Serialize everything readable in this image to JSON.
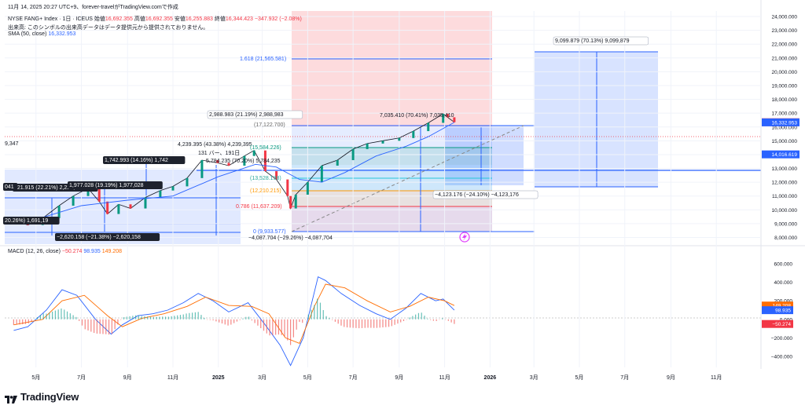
{
  "header": {
    "timestamp": "11月 14, 2025 20:27 UTC+9、forever-travelがTradingView.comで作成",
    "symbol": "NYSE FANG+ Index · 1日 · ICEUS",
    "open_label": "始値",
    "open": "16,692.355",
    "high_label": "高値",
    "high": "16,692.355",
    "low_label": "安値",
    "low": "16,255.883",
    "close_label": "終値",
    "close": "16,344.423",
    "change": "−347.932 (−2.08%)",
    "volume_note": "出来高: このシンボルの出来高データはデータ提供元から提供されておりません。",
    "sma_label": "SMA (50, close)",
    "sma_value": "16,332.953",
    "macd_label": "MACD (12, 26, close)",
    "macd_hist": "−50.274",
    "macd_line": "98.935",
    "macd_signal": "149.208"
  },
  "colors": {
    "price": "#131722",
    "up": "#089981",
    "down": "#f23645",
    "sma": "#2962ff",
    "macd": "#2962ff",
    "signal": "#ff6d00",
    "accent": "#2962ff",
    "close_badge": "#f23645",
    "sma_badge": "#2962ff"
  },
  "chart_data": [
    {
      "type": "line",
      "name": "price-panel",
      "y_axis_ticks": [
        "24,000.000",
        "23,000.000",
        "22,000.000",
        "21,000.000",
        "20,000.000",
        "19,000.000",
        "18,000.000",
        "17,000.000",
        "16,000.000",
        "15,000.000",
        "14,000.000",
        "13,000.000",
        "12,000.000",
        "11,000.000",
        "10,000.000",
        "9,000.000",
        "8,000.000"
      ],
      "x_axis_ticks": [
        "5月",
        "7月",
        "9月",
        "11月",
        "2025",
        "3月",
        "5月",
        "7月",
        "9月",
        "11月",
        "2026",
        "3月",
        "5月",
        "7月",
        "9月",
        "11月"
      ],
      "ylim": [
        7800,
        24400
      ],
      "series": [
        {
          "name": "price",
          "points": [
            [
              "2024-04-01",
              9300
            ],
            [
              "2024-04-20",
              8900
            ],
            [
              "2024-05-10",
              9400
            ],
            [
              "2024-06-01",
              10300
            ],
            [
              "2024-06-20",
              11000
            ],
            [
              "2024-07-10",
              11550
            ],
            [
              "2024-07-25",
              10600
            ],
            [
              "2024-08-05",
              9700
            ],
            [
              "2024-08-20",
              10400
            ],
            [
              "2024-09-05",
              10100
            ],
            [
              "2024-09-25",
              10900
            ],
            [
              "2024-10-15",
              11400
            ],
            [
              "2024-11-01",
              11700
            ],
            [
              "2024-11-20",
              12300
            ],
            [
              "2024-12-10",
              13600
            ],
            [
              "2024-12-31",
              13400
            ],
            [
              "2025-01-15",
              13200
            ],
            [
              "2025-02-05",
              13900
            ],
            [
              "2025-02-18",
              14300
            ],
            [
              "2025-03-05",
              12800
            ],
            [
              "2025-03-20",
              12200
            ],
            [
              "2025-04-04",
              11000
            ],
            [
              "2025-04-08",
              10100
            ],
            [
              "2025-04-15",
              11100
            ],
            [
              "2025-05-01",
              12000
            ],
            [
              "2025-05-20",
              13200
            ],
            [
              "2025-06-10",
              13600
            ],
            [
              "2025-07-01",
              14400
            ],
            [
              "2025-07-20",
              14800
            ],
            [
              "2025-08-10",
              15000
            ],
            [
              "2025-09-01",
              15200
            ],
            [
              "2025-09-20",
              15700
            ],
            [
              "2025-10-10",
              16300
            ],
            [
              "2025-10-30",
              16950
            ],
            [
              "2025-11-05",
              16700
            ],
            [
              "2025-11-14",
              16344
            ]
          ]
        },
        {
          "name": "sma",
          "points": [
            [
              "2024-05-01",
              9300
            ],
            [
              "2024-07-01",
              10300
            ],
            [
              "2024-09-01",
              10700
            ],
            [
              "2024-11-01",
              11000
            ],
            [
              "2025-01-01",
              12400
            ],
            [
              "2025-02-20",
              13300
            ],
            [
              "2025-03-20",
              13100
            ],
            [
              "2025-04-20",
              12200
            ],
            [
              "2025-05-20",
              12000
            ],
            [
              "2025-06-20",
              12700
            ],
            [
              "2025-08-01",
              13900
            ],
            [
              "2025-09-10",
              14600
            ],
            [
              "2025-10-10",
              15300
            ],
            [
              "2025-11-14",
              16333
            ]
          ]
        }
      ],
      "annotations": [
        "9,347",
        "1,742.993 (14.16%) 1,742",
        "221.915 (22.21%) 2,221,91",
        "1,977.028 (19.19%) 1,977,028",
        "20.26%) 1,691,19",
        "−2,620.158 (−21.38%) −2,620,158",
        "4,239.395 (43.38%) 4,239,395",
        "131 バー、191日",
        "5,784.235 (70.20%) 5,784,235",
        "2,988.983 (21.19%) 2,988,983",
        "(17,122.700)",
        "1.618 (21,565.581)",
        "(15,584.226)",
        "(13,528.138)",
        "(12,210.215)",
        "0.786 (11,637.209)",
        "0 (9,933.577)",
        "−4,087.704 (−29.26%) −4,087,704",
        "7,035.410 (70.41%) 7,035,410",
        "9,099.879 (70.13%) 9,099,879",
        "−4,123.176 (−24.10%) −4,123,176",
        "041"
      ],
      "price_badges": [
        "16,344.423",
        "16,332.953",
        "14,016.619"
      ]
    },
    {
      "type": "line",
      "name": "macd-panel",
      "y_axis_ticks": [
        "600.000",
        "400.000",
        "200.000",
        "0.000",
        "−200.000",
        "−400.000"
      ],
      "ylim": [
        -520,
        720
      ],
      "series": [
        {
          "name": "macd",
          "points": [
            [
              "2024-04-01",
              -120
            ],
            [
              "2024-04-20",
              -80
            ],
            [
              "2024-05-15",
              100
            ],
            [
              "2024-06-05",
              320
            ],
            [
              "2024-06-25",
              260
            ],
            [
              "2024-07-20",
              0
            ],
            [
              "2024-08-10",
              -160
            ],
            [
              "2024-08-25",
              -60
            ],
            [
              "2024-09-15",
              40
            ],
            [
              "2024-10-05",
              60
            ],
            [
              "2024-10-25",
              100
            ],
            [
              "2024-11-15",
              180
            ],
            [
              "2024-12-05",
              280
            ],
            [
              "2024-12-25",
              200
            ],
            [
              "2025-01-15",
              80
            ],
            [
              "2025-02-10",
              180
            ],
            [
              "2025-03-05",
              -60
            ],
            [
              "2025-03-25",
              -280
            ],
            [
              "2025-04-08",
              -500
            ],
            [
              "2025-04-25",
              -200
            ],
            [
              "2025-05-15",
              460
            ],
            [
              "2025-05-25",
              420
            ],
            [
              "2025-06-15",
              280
            ],
            [
              "2025-07-10",
              150
            ],
            [
              "2025-08-01",
              60
            ],
            [
              "2025-08-20",
              0
            ],
            [
              "2025-09-10",
              120
            ],
            [
              "2025-09-30",
              280
            ],
            [
              "2025-10-20",
              200
            ],
            [
              "2025-10-30",
              220
            ],
            [
              "2025-11-14",
              99
            ]
          ]
        },
        {
          "name": "signal",
          "points": [
            [
              "2024-04-01",
              -60
            ],
            [
              "2024-05-10",
              0
            ],
            [
              "2024-06-05",
              200
            ],
            [
              "2024-07-05",
              260
            ],
            [
              "2024-08-05",
              40
            ],
            [
              "2024-08-25",
              -80
            ],
            [
              "2024-09-20",
              10
            ],
            [
              "2024-10-20",
              60
            ],
            [
              "2024-11-20",
              140
            ],
            [
              "2024-12-15",
              240
            ],
            [
              "2025-01-15",
              150
            ],
            [
              "2025-02-15",
              140
            ],
            [
              "2025-03-10",
              60
            ],
            [
              "2025-04-01",
              -200
            ],
            [
              "2025-04-20",
              -260
            ],
            [
              "2025-05-10",
              140
            ],
            [
              "2025-05-25",
              380
            ],
            [
              "2025-06-20",
              340
            ],
            [
              "2025-07-20",
              200
            ],
            [
              "2025-08-20",
              80
            ],
            [
              "2025-09-15",
              140
            ],
            [
              "2025-10-10",
              240
            ],
            [
              "2025-11-01",
              200
            ],
            [
              "2025-11-14",
              149
            ]
          ]
        }
      ],
      "badges": [
        "149.208",
        "98.935",
        "−50.274"
      ]
    }
  ],
  "brand": "TradingView"
}
